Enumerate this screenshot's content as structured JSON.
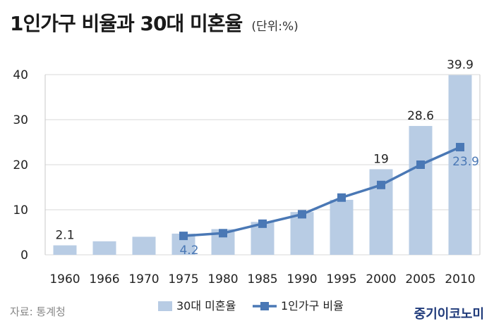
{
  "header": {
    "title": "1인가구 비율과 30대 미혼율",
    "unit": "(단위:%)"
  },
  "footer": {
    "source": "자료: 통계청",
    "brand": "중기이코노미"
  },
  "colors": {
    "bar": "#b8cce4",
    "line": "#4a78b5",
    "grid": "#d9d9d9"
  },
  "chart_data": {
    "type": "bar",
    "categories": [
      "1960",
      "1966",
      "1970",
      "1975",
      "1980",
      "1985",
      "1990",
      "1995",
      "2000",
      "2005",
      "2010"
    ],
    "ylim": [
      0,
      40
    ],
    "yticks": [
      "0",
      "10",
      "20",
      "30",
      "40"
    ],
    "grid": true,
    "legend_position": "bottom",
    "series": [
      {
        "name": "30대 미혼율",
        "kind": "bar",
        "values": [
          2.1,
          3.0,
          4.0,
          4.7,
          5.7,
          7.3,
          9.5,
          12.2,
          19,
          28.6,
          39.9
        ]
      },
      {
        "name": "1인가구 비율",
        "kind": "line",
        "values": [
          null,
          null,
          null,
          4.2,
          4.8,
          6.9,
          9.0,
          12.7,
          15.5,
          20.0,
          23.9
        ]
      }
    ],
    "data_labels": [
      {
        "series": 0,
        "index": 0,
        "text": "2.1"
      },
      {
        "series": 0,
        "index": 8,
        "text": "19"
      },
      {
        "series": 0,
        "index": 9,
        "text": "28.6"
      },
      {
        "series": 0,
        "index": 10,
        "text": "39.9"
      },
      {
        "series": 1,
        "index": 3,
        "text": "4.2"
      },
      {
        "series": 1,
        "index": 10,
        "text": "23.9"
      }
    ]
  }
}
